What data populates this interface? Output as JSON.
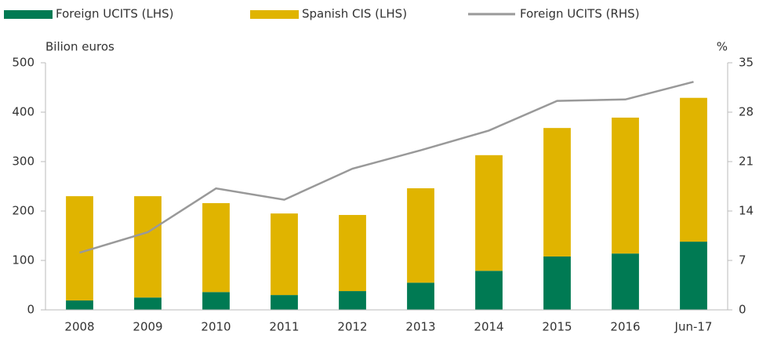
{
  "chart_data": {
    "type": "bar",
    "categories": [
      "2008",
      "2009",
      "2010",
      "2011",
      "2012",
      "2013",
      "2014",
      "2015",
      "2016",
      "Jun-17"
    ],
    "y_label": "Bilion euros",
    "y2_label": "%",
    "series": [
      {
        "name": "Foreign UCITS (LHS)",
        "color": "#007a53",
        "values": [
          19,
          25,
          36,
          30,
          38,
          55,
          79,
          108,
          114,
          138
        ]
      },
      {
        "name": "Spanish CIS (LHS)",
        "color": "#e0b400",
        "values": [
          211,
          205,
          180,
          165,
          154,
          191,
          234,
          260,
          275,
          291
        ]
      },
      {
        "name": "Foreign UCITS (RHS)",
        "color": "#999999",
        "type": "line",
        "axis": "y2",
        "values": [
          8.1,
          11,
          17.2,
          15.6,
          20,
          22.6,
          25.4,
          29.6,
          29.8,
          32.3
        ]
      }
    ],
    "stacked": true,
    "ylim": [
      0,
      500
    ],
    "yticks": [
      0,
      100,
      200,
      300,
      400,
      500
    ],
    "y2lim": [
      0,
      35
    ],
    "y2ticks": [
      0,
      7,
      14,
      21,
      28,
      35
    ]
  }
}
